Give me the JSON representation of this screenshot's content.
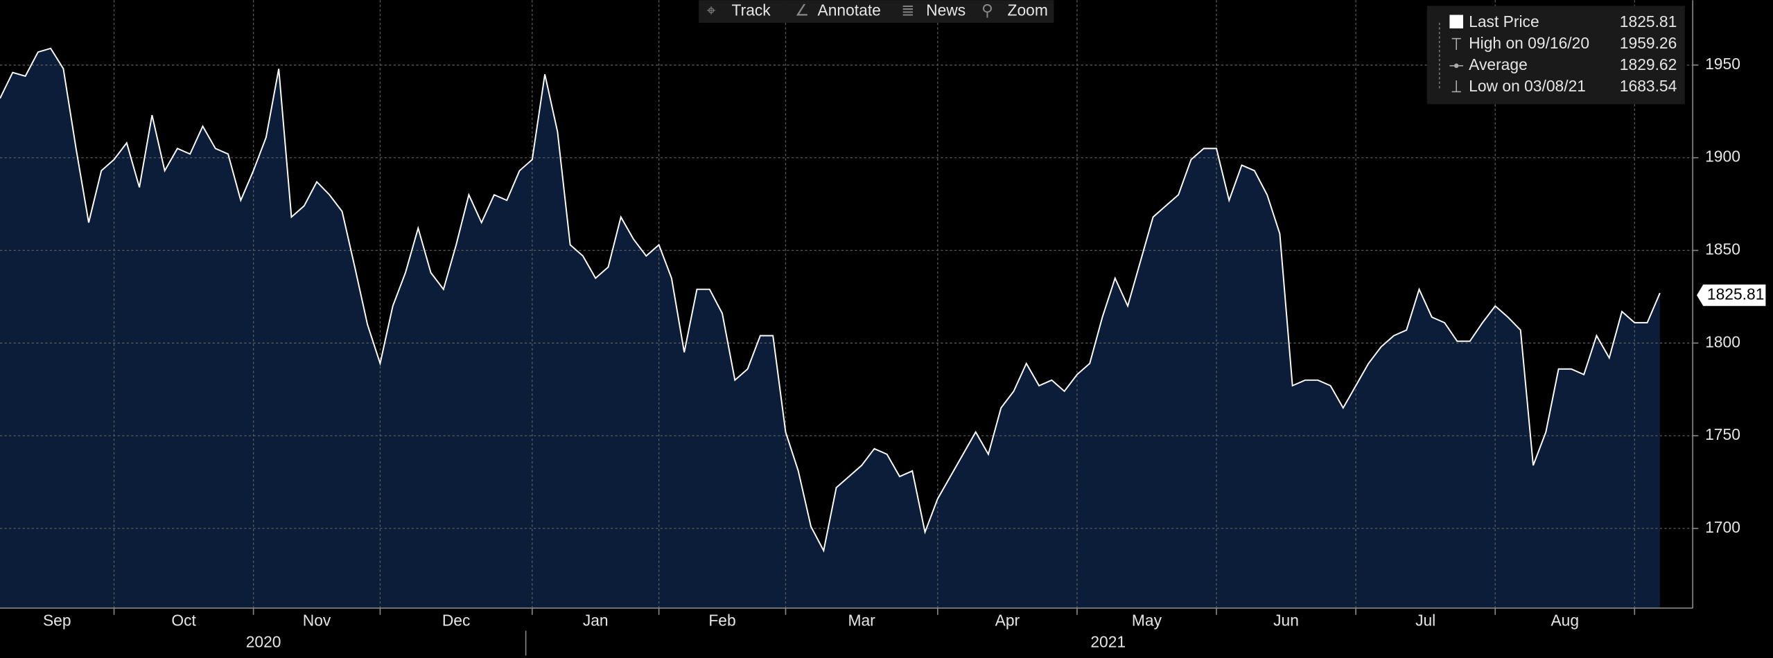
{
  "toolbar": [
    "Track",
    "Annotate",
    "News",
    "Zoom"
  ],
  "chart_data": {
    "type": "area",
    "categories": [
      "Sep",
      null,
      null,
      null,
      null,
      null,
      null,
      null,
      null,
      "Oct",
      null,
      null,
      null,
      null,
      null,
      null,
      null,
      null,
      null,
      null,
      "Nov",
      null,
      null,
      null,
      null,
      null,
      null,
      null,
      null,
      null,
      "Dec",
      null,
      null,
      null,
      null,
      null,
      null,
      null,
      null,
      null,
      null,
      null,
      "Jan",
      null,
      null,
      null,
      null,
      null,
      null,
      null,
      null,
      null,
      "Feb",
      null,
      null,
      null,
      null,
      null,
      null,
      null,
      null,
      null,
      "Mar",
      null,
      null,
      null,
      null,
      null,
      null,
      null,
      null,
      null,
      null,
      null,
      "Apr",
      null,
      null,
      null,
      null,
      null,
      null,
      null,
      null,
      null,
      null,
      "May",
      null,
      null,
      null,
      null,
      null,
      null,
      null,
      null,
      null,
      null,
      "Jun",
      null,
      null,
      null,
      null,
      null,
      null,
      null,
      null,
      null,
      null,
      "Jul",
      null,
      null,
      null,
      null,
      null,
      null,
      null,
      null,
      null,
      null,
      "Aug",
      null,
      null,
      null,
      null,
      null,
      null,
      null,
      null,
      null,
      null,
      null,
      null,
      null
    ],
    "years": [
      "2020",
      "2021"
    ],
    "series": [
      {
        "name": "Last Price",
        "color": "#ffffff",
        "fill": "#0b1d38",
        "values": [
          1932,
          1946,
          1944,
          1957,
          1959,
          1948,
          1905,
          1865,
          1893,
          1899,
          1908,
          1884,
          1923,
          1893,
          1905,
          1902,
          1917,
          1905,
          1902,
          1877,
          1893,
          1911,
          1948,
          1868,
          1874,
          1887,
          1880,
          1871,
          1841,
          1810,
          1789,
          1820,
          1838,
          1862,
          1838,
          1829,
          1853,
          1880,
          1865,
          1880,
          1877,
          1893,
          1899,
          1945,
          1914,
          1853,
          1847,
          1835,
          1841,
          1868,
          1856,
          1847,
          1853,
          1835,
          1795,
          1829,
          1829,
          1816,
          1780,
          1786,
          1804,
          1804,
          1752,
          1731,
          1701,
          1688,
          1722,
          1728,
          1734,
          1743,
          1740,
          1728,
          1731,
          1698,
          1716,
          1728,
          1740,
          1752,
          1740,
          1765,
          1774,
          1789,
          1777,
          1780,
          1774,
          1783,
          1789,
          1814,
          1835,
          1820,
          1844,
          1868,
          1874,
          1880,
          1899,
          1905,
          1905,
          1877,
          1896,
          1893,
          1880,
          1859,
          1777,
          1780,
          1780,
          1777,
          1765,
          1777,
          1789,
          1798,
          1804,
          1807,
          1829,
          1814,
          1811,
          1801,
          1801,
          1811,
          1820,
          1814,
          1807,
          1734,
          1752,
          1786,
          1786,
          1783,
          1804,
          1792,
          1817,
          1811,
          1811,
          1827
        ]
      }
    ],
    "legend": [
      {
        "name": "Last Price",
        "value": 1825.81
      },
      {
        "name": "High on 09/16/20",
        "value": 1959.26
      },
      {
        "name": "Average",
        "value": 1829.62
      },
      {
        "name": "Low on 03/08/21",
        "value": 1683.54
      }
    ],
    "ylim": [
      1657,
      1985
    ],
    "yticks": [
      1700,
      1750,
      1800,
      1850,
      1900,
      1950
    ],
    "grid": true
  }
}
